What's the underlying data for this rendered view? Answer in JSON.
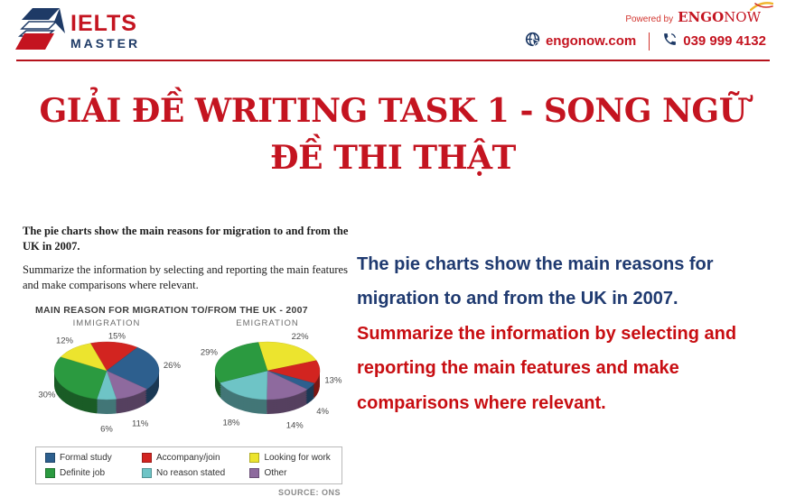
{
  "colors": {
    "brand_red": "#c41420",
    "brand_navy": "#1e3a66",
    "translation_blue": "#1f3a70",
    "translation_red": "#c80e12"
  },
  "header": {
    "logo": {
      "title": "IELTS",
      "subtitle": "MASTER"
    },
    "powered_by": "Powered by",
    "brand_bold": "ENGO",
    "brand_light": "NOW",
    "website": "engonow.com",
    "phone": "039 999 4132"
  },
  "title": {
    "line1": "GIẢI ĐỀ WRITING TASK 1 - SONG NGỮ",
    "line2": "ĐỀ THI THẬT"
  },
  "exam": {
    "prompt_bold": "The pie charts show the main reasons for migration to and from the UK in 2007.",
    "prompt_regular": "Summarize the information by selecting and reporting the main features and make comparisons where relevant."
  },
  "translation": {
    "sentence_blue": "The pie charts show the main reasons for migration to and from the UK in 2007.",
    "sentence_red": "Summarize the information by selecting and reporting the main features and make comparisons where relevant."
  },
  "chart_data": {
    "type": "pie",
    "title": "MAIN REASON FOR MIGRATION TO/FROM THE UK - 2007",
    "source": "SOURCE: ONS",
    "legend": [
      {
        "label": "Formal study",
        "color": "#2d5f8e"
      },
      {
        "label": "Accompany/join",
        "color": "#d22420"
      },
      {
        "label": "Looking for work",
        "color": "#ece42e"
      },
      {
        "label": "Definite job",
        "color": "#2b9a40"
      },
      {
        "label": "No reason stated",
        "color": "#6ec4c6"
      },
      {
        "label": "Other",
        "color": "#8e6a9e"
      }
    ],
    "pies": [
      {
        "label": "IMMIGRATION",
        "start_angle": -18,
        "slices": [
          {
            "label": "Accompany/join",
            "value": 15,
            "color": "#d22420"
          },
          {
            "label": "Formal study",
            "value": 26,
            "color": "#2d5f8e"
          },
          {
            "label": "Other",
            "value": 11,
            "color": "#8e6a9e"
          },
          {
            "label": "No reason stated",
            "value": 6,
            "color": "#6ec4c6"
          },
          {
            "label": "Definite job",
            "value": 30,
            "color": "#2b9a40"
          },
          {
            "label": "Looking for work",
            "value": 12,
            "color": "#ece42e"
          }
        ]
      },
      {
        "label": "EMIGRATION",
        "start_angle": -10,
        "slices": [
          {
            "label": "Looking for work",
            "value": 22,
            "color": "#ece42e"
          },
          {
            "label": "Accompany/join",
            "value": 13,
            "color": "#d22420"
          },
          {
            "label": "Formal study",
            "value": 4,
            "color": "#2d5f8e"
          },
          {
            "label": "Other",
            "value": 14,
            "color": "#8e6a9e"
          },
          {
            "label": "No reason stated",
            "value": 18,
            "color": "#6ec4c6"
          },
          {
            "label": "Definite job",
            "value": 29,
            "color": "#2b9a40"
          }
        ]
      }
    ]
  }
}
